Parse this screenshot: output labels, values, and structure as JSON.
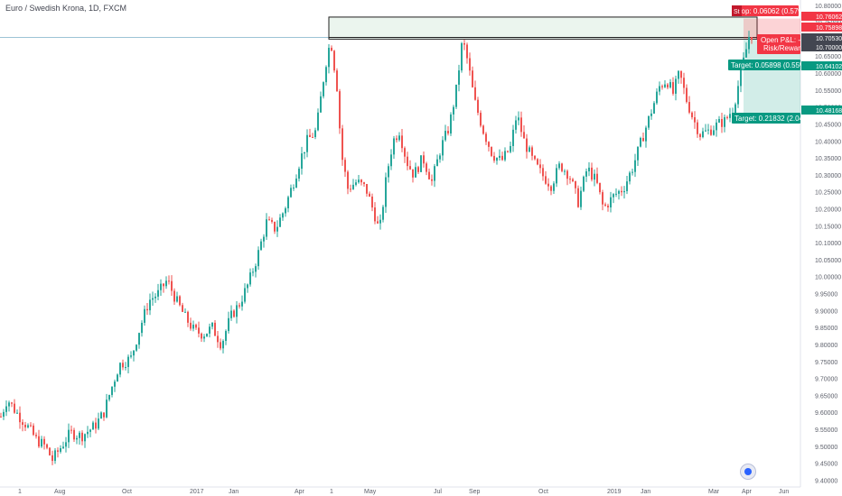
{
  "title": "Euro / Swedish Krona, 1D, FXCM",
  "colors": {
    "up": "#26a69a",
    "down": "#ef5350",
    "stop_fill": "rgba(242,54,69,0.22)",
    "target_fill": "rgba(8,153,129,0.18)",
    "range_fill": "rgba(120,190,140,0.15)",
    "axis_text": "#5d606b",
    "stop_tag": "#f23645",
    "target_tag": "#089981",
    "current_tag": "#434651"
  },
  "chart_data": {
    "type": "candlestick",
    "y_axis": {
      "ylim": [
        9.38,
        10.81
      ],
      "ticks": [
        "9.40000",
        "9.45000",
        "9.50000",
        "9.55000",
        "9.60000",
        "9.65000",
        "9.70000",
        "9.75000",
        "9.80000",
        "9.85000",
        "9.90000",
        "9.95000",
        "10.00000",
        "10.05000",
        "10.10000",
        "10.15000",
        "10.20000",
        "10.25000",
        "10.30000",
        "10.35000",
        "10.40000",
        "10.45000",
        "10.50000",
        "10.55000",
        "10.60000",
        "10.65000",
        "10.70000",
        "10.75000",
        "10.80000"
      ]
    },
    "x_axis": {
      "labels": [
        "1",
        "Aug",
        "Oct",
        "2017",
        "Jan",
        "Apr",
        "1",
        "May",
        "Jul",
        "Sep",
        "Oct",
        "2019",
        "Jan",
        "Mar",
        "Apr",
        "Jun"
      ]
    },
    "price_tags": [
      {
        "value": "10.76062",
        "kind": "stop"
      },
      {
        "value": "10.75898",
        "kind": "stop"
      },
      {
        "value": "10.70530",
        "kind": "current"
      },
      {
        "value": "10.70000",
        "kind": "current"
      },
      {
        "value": "10.64102",
        "kind": "target"
      },
      {
        "value": "10.48168",
        "kind": "target"
      }
    ],
    "annotations": {
      "stop": "Stop: 0.06062 (0.57%)",
      "open_pl": "Open P&L: -0.005",
      "risk_reward": "Risk/Reward",
      "target_1": "Target: 0.05898 (0.55%) 58",
      "target_2": "Target: 0.21832 (2.04%) 2",
      "stop_badge": "St"
    },
    "resistance_zone": [
      10.7,
      10.765
    ],
    "position": {
      "entry": 10.7,
      "stop": 10.76062,
      "target_1": 10.64102,
      "target_2": 10.48168
    },
    "series": [
      {
        "anchors": [
          [
            0,
            9.58
          ],
          [
            8,
            9.64
          ],
          [
            18,
            9.6
          ],
          [
            30,
            9.56
          ],
          [
            40,
            9.52
          ],
          [
            50,
            9.5
          ],
          [
            58,
            9.46
          ],
          [
            68,
            9.5
          ],
          [
            78,
            9.54
          ],
          [
            90,
            9.53
          ],
          [
            105,
            9.56
          ],
          [
            115,
            9.6
          ],
          [
            122,
            9.66
          ],
          [
            132,
            9.74
          ],
          [
            145,
            9.76
          ],
          [
            155,
            9.85
          ],
          [
            165,
            9.93
          ],
          [
            175,
            9.95
          ],
          [
            185,
            9.99
          ],
          [
            195,
            9.93
          ],
          [
            205,
            9.88
          ],
          [
            215,
            9.84
          ],
          [
            225,
            9.83
          ],
          [
            235,
            9.85
          ],
          [
            245,
            9.8
          ],
          [
            255,
            9.88
          ],
          [
            265,
            9.92
          ],
          [
            275,
            9.98
          ],
          [
            285,
            10.06
          ],
          [
            295,
            10.16
          ],
          [
            305,
            10.14
          ],
          [
            315,
            10.2
          ],
          [
            325,
            10.28
          ],
          [
            333,
            10.35
          ],
          [
            340,
            10.4
          ],
          [
            350,
            10.43
          ],
          [
            360,
            10.62
          ],
          [
            366,
            10.7
          ],
          [
            373,
            10.56
          ],
          [
            378,
            10.36
          ],
          [
            385,
            10.26
          ],
          [
            395,
            10.28
          ],
          [
            405,
            10.26
          ],
          [
            415,
            10.18
          ],
          [
            420,
            10.13
          ],
          [
            428,
            10.3
          ],
          [
            435,
            10.4
          ],
          [
            442,
            10.43
          ],
          [
            450,
            10.34
          ],
          [
            458,
            10.3
          ],
          [
            468,
            10.35
          ],
          [
            478,
            10.28
          ],
          [
            488,
            10.38
          ],
          [
            497,
            10.44
          ],
          [
            505,
            10.55
          ],
          [
            512,
            10.7
          ],
          [
            518,
            10.63
          ],
          [
            525,
            10.52
          ],
          [
            535,
            10.43
          ],
          [
            545,
            10.36
          ],
          [
            555,
            10.34
          ],
          [
            565,
            10.38
          ],
          [
            572,
            10.48
          ],
          [
            580,
            10.4
          ],
          [
            590,
            10.34
          ],
          [
            600,
            10.3
          ],
          [
            610,
            10.27
          ],
          [
            620,
            10.33
          ],
          [
            630,
            10.3
          ],
          [
            640,
            10.22
          ],
          [
            650,
            10.32
          ],
          [
            660,
            10.28
          ],
          [
            668,
            10.2
          ],
          [
            680,
            10.24
          ],
          [
            690,
            10.26
          ],
          [
            700,
            10.32
          ],
          [
            710,
            10.4
          ],
          [
            720,
            10.48
          ],
          [
            730,
            10.56
          ],
          [
            738,
            10.58
          ],
          [
            745,
            10.54
          ],
          [
            752,
            10.6
          ],
          [
            760,
            10.52
          ],
          [
            768,
            10.46
          ],
          [
            775,
            10.42
          ],
          [
            785,
            10.43
          ],
          [
            795,
            10.45
          ],
          [
            803,
            10.46
          ],
          [
            812,
            10.5
          ],
          [
            820,
            10.6
          ],
          [
            826,
            10.67
          ],
          [
            830,
            10.72
          ],
          [
            834,
            10.705
          ]
        ]
      }
    ]
  }
}
